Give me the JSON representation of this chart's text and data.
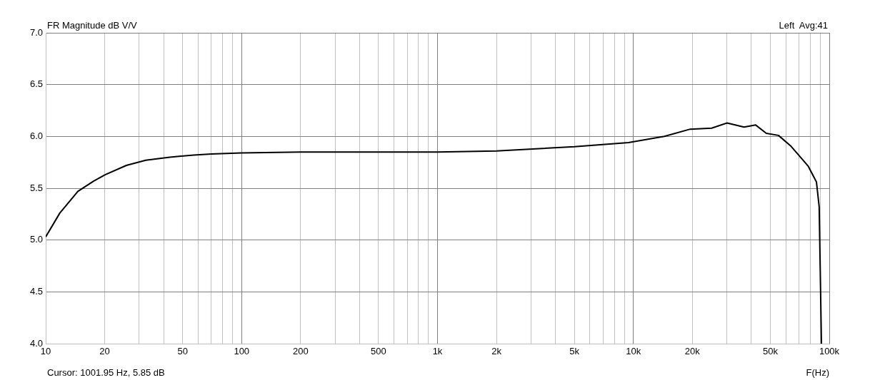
{
  "chart_data": {
    "type": "line",
    "title": "FR Magnitude dB V/V",
    "subtitle": "Left  Avg:41",
    "xlabel": "F(Hz)",
    "annotations": [
      "Cursor: 1001.95 Hz, 5.85 dB"
    ],
    "log": "x",
    "grid": true,
    "legend": false,
    "marker": "none",
    "line_style": "solid",
    "xlim": [
      10,
      100000
    ],
    "ylim": [
      4,
      7
    ],
    "xticks": [
      10,
      20,
      {
        "value": 30,
        "label": null
      },
      {
        "value": 40,
        "label": null
      },
      50,
      {
        "value": 60,
        "label": null
      },
      {
        "value": 70,
        "label": null
      },
      {
        "value": 80,
        "label": null
      },
      {
        "value": 90,
        "label": null
      },
      100,
      200,
      {
        "value": 300,
        "label": null
      },
      {
        "value": 400,
        "label": null
      },
      500,
      {
        "value": 600,
        "label": null
      },
      {
        "value": 700,
        "label": null
      },
      {
        "value": 800,
        "label": null
      },
      {
        "value": 900,
        "label": null
      },
      {
        "value": 1000,
        "label": "1k"
      },
      {
        "value": 2000,
        "label": "2k"
      },
      {
        "value": 3000,
        "label": null
      },
      {
        "value": 4000,
        "label": null
      },
      {
        "value": 5000,
        "label": "5k"
      },
      {
        "value": 6000,
        "label": null
      },
      {
        "value": 7000,
        "label": null
      },
      {
        "value": 8000,
        "label": null
      },
      {
        "value": 9000,
        "label": null
      },
      {
        "value": 10000,
        "label": "10k"
      },
      {
        "value": 20000,
        "label": "20k"
      },
      {
        "value": 30000,
        "label": null
      },
      {
        "value": 40000,
        "label": null
      },
      {
        "value": 50000,
        "label": "50k"
      },
      {
        "value": 60000,
        "label": null
      },
      {
        "value": 70000,
        "label": null
      },
      {
        "value": 80000,
        "label": null
      },
      {
        "value": 90000,
        "label": null
      },
      {
        "value": 100000,
        "label": "100k"
      }
    ],
    "yticks": [
      {
        "value": 4,
        "label": "4.0"
      },
      {
        "value": 4.5,
        "label": "4.5"
      },
      {
        "value": 5,
        "label": "5.0"
      },
      {
        "value": 5.5,
        "label": "5.5"
      },
      {
        "value": 6,
        "label": "6.0"
      },
      {
        "value": 6.5,
        "label": "6.5"
      },
      {
        "value": 7,
        "label": "7.0"
      }
    ],
    "series": [
      {
        "color": "#000000",
        "x": [
          10,
          11.8,
          14.6,
          17.6,
          20.1,
          25.8,
          32.4,
          43,
          57,
          70,
          100,
          200,
          500,
          1000,
          2000,
          5000,
          8000,
          9440,
          14400,
          19500,
          25100,
          30100,
          36700,
          42100,
          47700,
          55000,
          63400,
          72800,
          78200,
          86000,
          88800,
          89900,
          91200
        ],
        "values": [
          5.03,
          5.26,
          5.47,
          5.57,
          5.63,
          5.72,
          5.77,
          5.8,
          5.82,
          5.83,
          5.84,
          5.85,
          5.85,
          5.85,
          5.86,
          5.9,
          5.93,
          5.94,
          6.0,
          6.07,
          6.08,
          6.13,
          6.09,
          6.11,
          6.03,
          6.01,
          5.91,
          5.78,
          5.71,
          5.56,
          5.32,
          4.72,
          4.0
        ]
      }
    ]
  }
}
